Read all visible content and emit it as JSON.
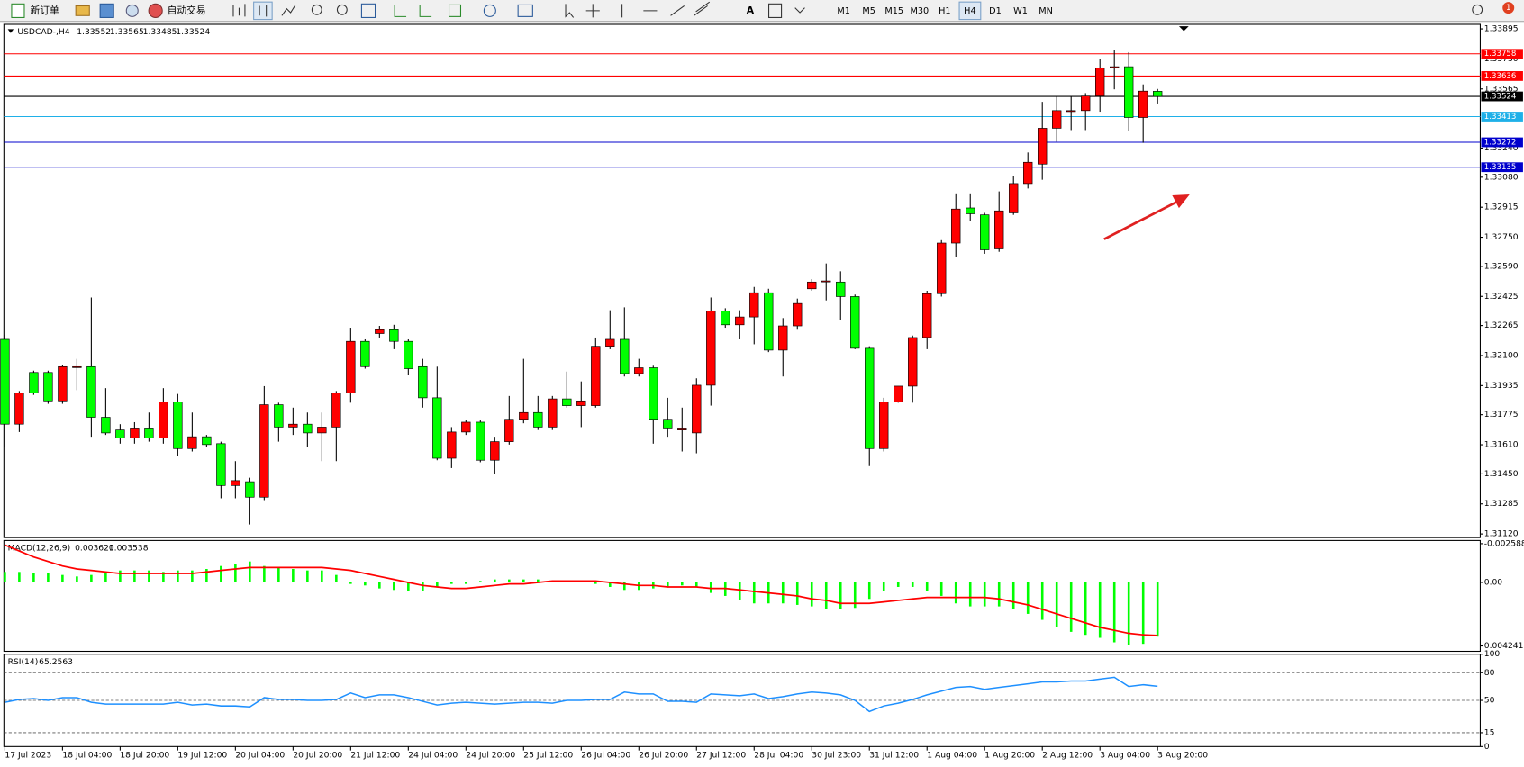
{
  "toolbar": {
    "new_order": "新订单",
    "auto_trading": "自动交易",
    "text_tool": "A",
    "timeframes": [
      "M1",
      "M5",
      "M15",
      "M30",
      "H1",
      "H4",
      "D1",
      "W1",
      "MN"
    ],
    "active_timeframe": 5,
    "notifications": 1
  },
  "chart_data": {
    "type": "candlestick",
    "symbol": "USDCAD-,H4",
    "up_color": "#ff0000",
    "down_color": "#00ff00",
    "candles": [
      [
        1.32189,
        1.32215,
        1.316,
        1.31723
      ],
      [
        1.31723,
        1.31905,
        1.3168,
        1.31894
      ],
      [
        1.32007,
        1.32017,
        1.31884,
        1.31894
      ],
      [
        1.32007,
        1.32017,
        1.31835,
        1.31851
      ],
      [
        1.31851,
        1.32049,
        1.31835,
        1.32039
      ],
      [
        1.32039,
        1.32082,
        1.3191,
        1.32039
      ],
      [
        1.32039,
        1.32419,
        1.31654,
        1.31761
      ],
      [
        1.31761,
        1.31921,
        1.31664,
        1.31675
      ],
      [
        1.31691,
        1.31723,
        1.31616,
        1.31648
      ],
      [
        1.31648,
        1.31734,
        1.31616,
        1.31702
      ],
      [
        1.31702,
        1.31787,
        1.31627,
        1.31648
      ],
      [
        1.31648,
        1.31921,
        1.31616,
        1.31846
      ],
      [
        1.31846,
        1.31889,
        1.31547,
        1.31589
      ],
      [
        1.31589,
        1.31787,
        1.31573,
        1.31654
      ],
      [
        1.31654,
        1.31664,
        1.316,
        1.31611
      ],
      [
        1.31616,
        1.31627,
        1.31316,
        1.31386
      ],
      [
        1.31386,
        1.3152,
        1.31316,
        1.31413
      ],
      [
        1.31407,
        1.31429,
        1.31172,
        1.31322
      ],
      [
        1.31322,
        1.31932,
        1.31306,
        1.3183
      ],
      [
        1.3183,
        1.31841,
        1.31627,
        1.31707
      ],
      [
        1.31707,
        1.31814,
        1.31664,
        1.31723
      ],
      [
        1.31723,
        1.31787,
        1.316,
        1.31675
      ],
      [
        1.31675,
        1.31787,
        1.3152,
        1.31707
      ],
      [
        1.31707,
        1.31905,
        1.3152,
        1.31894
      ],
      [
        1.31894,
        1.32253,
        1.31841,
        1.32178
      ],
      [
        1.32178,
        1.32189,
        1.32028,
        1.32039
      ],
      [
        1.32221,
        1.32263,
        1.32199,
        1.32242
      ],
      [
        1.32242,
        1.32269,
        1.32135,
        1.32178
      ],
      [
        1.32178,
        1.32189,
        1.31991,
        1.32028
      ],
      [
        1.32039,
        1.32082,
        1.31814,
        1.31868
      ],
      [
        1.31868,
        1.32039,
        1.31525,
        1.31536
      ],
      [
        1.31536,
        1.31707,
        1.31482,
        1.3168
      ],
      [
        1.3168,
        1.31744,
        1.31664,
        1.31734
      ],
      [
        1.31734,
        1.31744,
        1.31514,
        1.31525
      ],
      [
        1.31525,
        1.31654,
        1.3145,
        1.31627
      ],
      [
        1.31627,
        1.31878,
        1.31611,
        1.3175
      ],
      [
        1.3175,
        1.32082,
        1.31728,
        1.31787
      ],
      [
        1.31787,
        1.31878,
        1.31691,
        1.31707
      ],
      [
        1.31707,
        1.31878,
        1.31691,
        1.31862
      ],
      [
        1.31862,
        1.32012,
        1.31814,
        1.31825
      ],
      [
        1.31825,
        1.31958,
        1.31707,
        1.31851
      ],
      [
        1.31825,
        1.32199,
        1.31814,
        1.32151
      ],
      [
        1.32151,
        1.32349,
        1.32135,
        1.32189
      ],
      [
        1.32189,
        1.32365,
        1.31985,
        1.32001
      ],
      [
        1.32001,
        1.32082,
        1.31985,
        1.32033
      ],
      [
        1.32033,
        1.32044,
        1.31616,
        1.3175
      ],
      [
        1.3175,
        1.31868,
        1.31654,
        1.31702
      ],
      [
        1.31691,
        1.31814,
        1.31573,
        1.31702
      ],
      [
        1.31675,
        1.31975,
        1.31563,
        1.31937
      ],
      [
        1.31937,
        1.32419,
        1.31825,
        1.32344
      ],
      [
        1.32344,
        1.3236,
        1.32253,
        1.32269
      ],
      [
        1.32269,
        1.32349,
        1.32189,
        1.32312
      ],
      [
        1.32312,
        1.32477,
        1.32162,
        1.32445
      ],
      [
        1.32445,
        1.32467,
        1.32119,
        1.3213
      ],
      [
        1.3213,
        1.32306,
        1.31985,
        1.32263
      ],
      [
        1.32263,
        1.32413,
        1.32242,
        1.32386
      ],
      [
        1.32467,
        1.3252,
        1.32456,
        1.32504
      ],
      [
        1.3251,
        1.32606,
        1.32403,
        1.3251
      ],
      [
        1.32504,
        1.32563,
        1.32296,
        1.32424
      ],
      [
        1.32424,
        1.32435,
        1.32135,
        1.3214
      ],
      [
        1.3214,
        1.32151,
        1.31493,
        1.31589
      ],
      [
        1.31589,
        1.31868,
        1.31573,
        1.31846
      ],
      [
        1.31846,
        1.31932,
        1.31841,
        1.31932
      ],
      [
        1.31932,
        1.3221,
        1.31841,
        1.32199
      ],
      [
        1.32199,
        1.32456,
        1.32135,
        1.3244
      ],
      [
        1.3244,
        1.32734,
        1.32424,
        1.32718
      ],
      [
        1.32718,
        1.32991,
        1.32643,
        1.32905
      ],
      [
        1.32911,
        1.32991,
        1.32841,
        1.32879
      ],
      [
        1.32873,
        1.32884,
        1.32659,
        1.32681
      ],
      [
        1.32686,
        1.33002,
        1.3267,
        1.32895
      ],
      [
        1.32884,
        1.33087,
        1.32873,
        1.33045
      ],
      [
        1.33045,
        1.33216,
        1.33018,
        1.33162
      ],
      [
        1.33152,
        1.33494,
        1.33066,
        1.33349
      ],
      [
        1.33349,
        1.33526,
        1.33275,
        1.33446
      ],
      [
        1.33446,
        1.33526,
        1.33339,
        1.33446
      ],
      [
        1.33446,
        1.33542,
        1.33339,
        1.33526
      ],
      [
        1.33526,
        1.33729,
        1.3344,
        1.33681
      ],
      [
        1.33687,
        1.33777,
        1.33563,
        1.33687
      ],
      [
        1.33687,
        1.33767,
        1.33333,
        1.33408
      ],
      [
        1.33408,
        1.3359,
        1.33269,
        1.33553
      ],
      [
        1.33552,
        1.33565,
        1.33485,
        1.33524
      ]
    ],
    "ylim": [
      1.3392,
      1.311
    ],
    "yticks": [
      1.33895,
      {
        "value": 1.3373,
        "label": "1.33730"
      },
      1.33565,
      {
        "value": 1.3324,
        "label": "1.33240"
      },
      {
        "value": 1.3308,
        "label": "1.33080"
      },
      1.32915,
      {
        "value": 1.3275,
        "label": "1.32750"
      },
      {
        "value": 1.3259,
        "label": "1.32590"
      },
      1.32425,
      1.32265,
      {
        "value": 1.321,
        "label": "1.32100"
      },
      1.31935,
      1.31775,
      {
        "value": 1.3161,
        "label": "1.31610"
      },
      {
        "value": 1.3145,
        "label": "1.31450"
      },
      1.31285,
      {
        "value": 1.3112,
        "label": "1.31120"
      }
    ],
    "levels": [
      {
        "value": 1.33758,
        "color": "#ff0000"
      },
      {
        "value": 1.33636,
        "color": "#ff0000"
      },
      {
        "value": 1.33524,
        "color": "#000000"
      },
      {
        "value": 1.33413,
        "color": "#1fb0e8"
      },
      {
        "value": 1.33272,
        "color": "#0000cd"
      },
      {
        "value": 1.33135,
        "color": "#0000cd"
      }
    ],
    "x_labels": [
      "17 Jul 2023",
      "18 Jul 04:00",
      "18 Jul 20:00",
      "19 Jul 12:00",
      "20 Jul 04:00",
      "20 Jul 20:00",
      "21 Jul 12:00",
      "24 Jul 04:00",
      "24 Jul 20:00",
      "25 Jul 12:00",
      "26 Jul 04:00",
      "26 Jul 20:00",
      "27 Jul 12:00",
      "28 Jul 04:00",
      "30 Jul 23:00",
      "31 Jul 12:00",
      "1 Aug 04:00",
      "1 Aug 20:00",
      "2 Aug 12:00",
      "3 Aug 04:00",
      "3 Aug 20:00"
    ],
    "macd": {
      "label": "MACD(12,26,9)",
      "histogram_color": "#00ff00",
      "signal_color": "#ff0000",
      "ylim": [
        -0.0028,
        0.0046
      ],
      "yticks": [
        0.004241,
        {
          "value": 0,
          "label": "0.00"
        },
        -0.002588
      ],
      "histogram": [
        -0.0007,
        -0.0007,
        -0.0006,
        -0.0006,
        -0.0005,
        -0.0004,
        -0.0005,
        -0.0007,
        -0.0008,
        -0.0008,
        -0.0008,
        -0.0007,
        -0.0008,
        -0.0008,
        -0.0009,
        -0.0011,
        -0.0012,
        -0.0014,
        -0.0011,
        -0.001,
        -0.0009,
        -0.0008,
        -0.0008,
        -0.0005,
        0.0001,
        0.0002,
        0.0004,
        0.0005,
        0.0006,
        0.0006,
        0.0003,
        0.0001,
        0.0001,
        -0.0001,
        -0.0002,
        -0.0002,
        -0.0002,
        -0.0002,
        -0.0001,
        -0.0001,
        -0.0001,
        0.0001,
        0.0003,
        0.0005,
        0.0005,
        0.0004,
        0.0003,
        0.0002,
        0.0003,
        0.0007,
        0.0009,
        0.0012,
        0.0014,
        0.0014,
        0.0014,
        0.0015,
        0.0016,
        0.0018,
        0.0018,
        0.0017,
        0.0011,
        0.0006,
        0.0003,
        0.0003,
        0.0006,
        0.0009,
        0.0014,
        0.0016,
        0.0016,
        0.0016,
        0.0018,
        0.0021,
        0.0025,
        0.003,
        0.0033,
        0.0035,
        0.0037,
        0.004,
        0.0042,
        0.0041,
        0.003621
      ],
      "signal": [
        -0.0025,
        -0.0021,
        -0.0017,
        -0.0014,
        -0.0011,
        -0.0009,
        -0.0008,
        -0.0007,
        -0.0006,
        -0.0006,
        -0.0006,
        -0.0006,
        -0.0006,
        -0.0006,
        -0.0007,
        -0.0008,
        -0.0009,
        -0.001,
        -0.001,
        -0.001,
        -0.001,
        -0.001,
        -0.001,
        -0.0009,
        -0.0008,
        -0.0006,
        -0.0004,
        -0.0002,
        0,
        0.0002,
        0.0003,
        0.0004,
        0.0004,
        0.0003,
        0.0002,
        0.0001,
        0.0001,
        0,
        -0.0001,
        -0.0001,
        -0.0001,
        -0.0001,
        0,
        0.0001,
        0.0002,
        0.0002,
        0.0003,
        0.0003,
        0.0003,
        0.0004,
        0.0004,
        0.0005,
        0.0006,
        0.0007,
        0.0008,
        0.0009,
        0.0011,
        0.0012,
        0.0014,
        0.0014,
        0.0014,
        0.0013,
        0.0012,
        0.0011,
        0.001,
        0.001,
        0.001,
        0.001,
        0.001,
        0.0011,
        0.0013,
        0.0015,
        0.0018,
        0.0021,
        0.0024,
        0.0027,
        0.003,
        0.0032,
        0.0034,
        0.0035,
        0.003538
      ]
    },
    "rsi": {
      "label": "RSI(14)",
      "color": "#1e90ff",
      "ylim": [
        0,
        100
      ],
      "yticks": [
        100,
        80,
        50,
        15,
        0
      ],
      "levels": [
        80,
        50,
        15
      ],
      "values": [
        48,
        51,
        52,
        50,
        53,
        53,
        48,
        46,
        46,
        46,
        46,
        46,
        48,
        45,
        46,
        44,
        44,
        43,
        53,
        51,
        51,
        50,
        50,
        51,
        58,
        53,
        56,
        56,
        53,
        49,
        45,
        47,
        48,
        47,
        46,
        47,
        48,
        48,
        47,
        50,
        50,
        51,
        51,
        59,
        57,
        57,
        49,
        49,
        48,
        57,
        56,
        55,
        57,
        52,
        54,
        57,
        59,
        58,
        56,
        50,
        38,
        44,
        47,
        51,
        56,
        60,
        64,
        65,
        62,
        64,
        66,
        68,
        70,
        70,
        71,
        71,
        73,
        75,
        65,
        67,
        65.2563
      ]
    }
  }
}
